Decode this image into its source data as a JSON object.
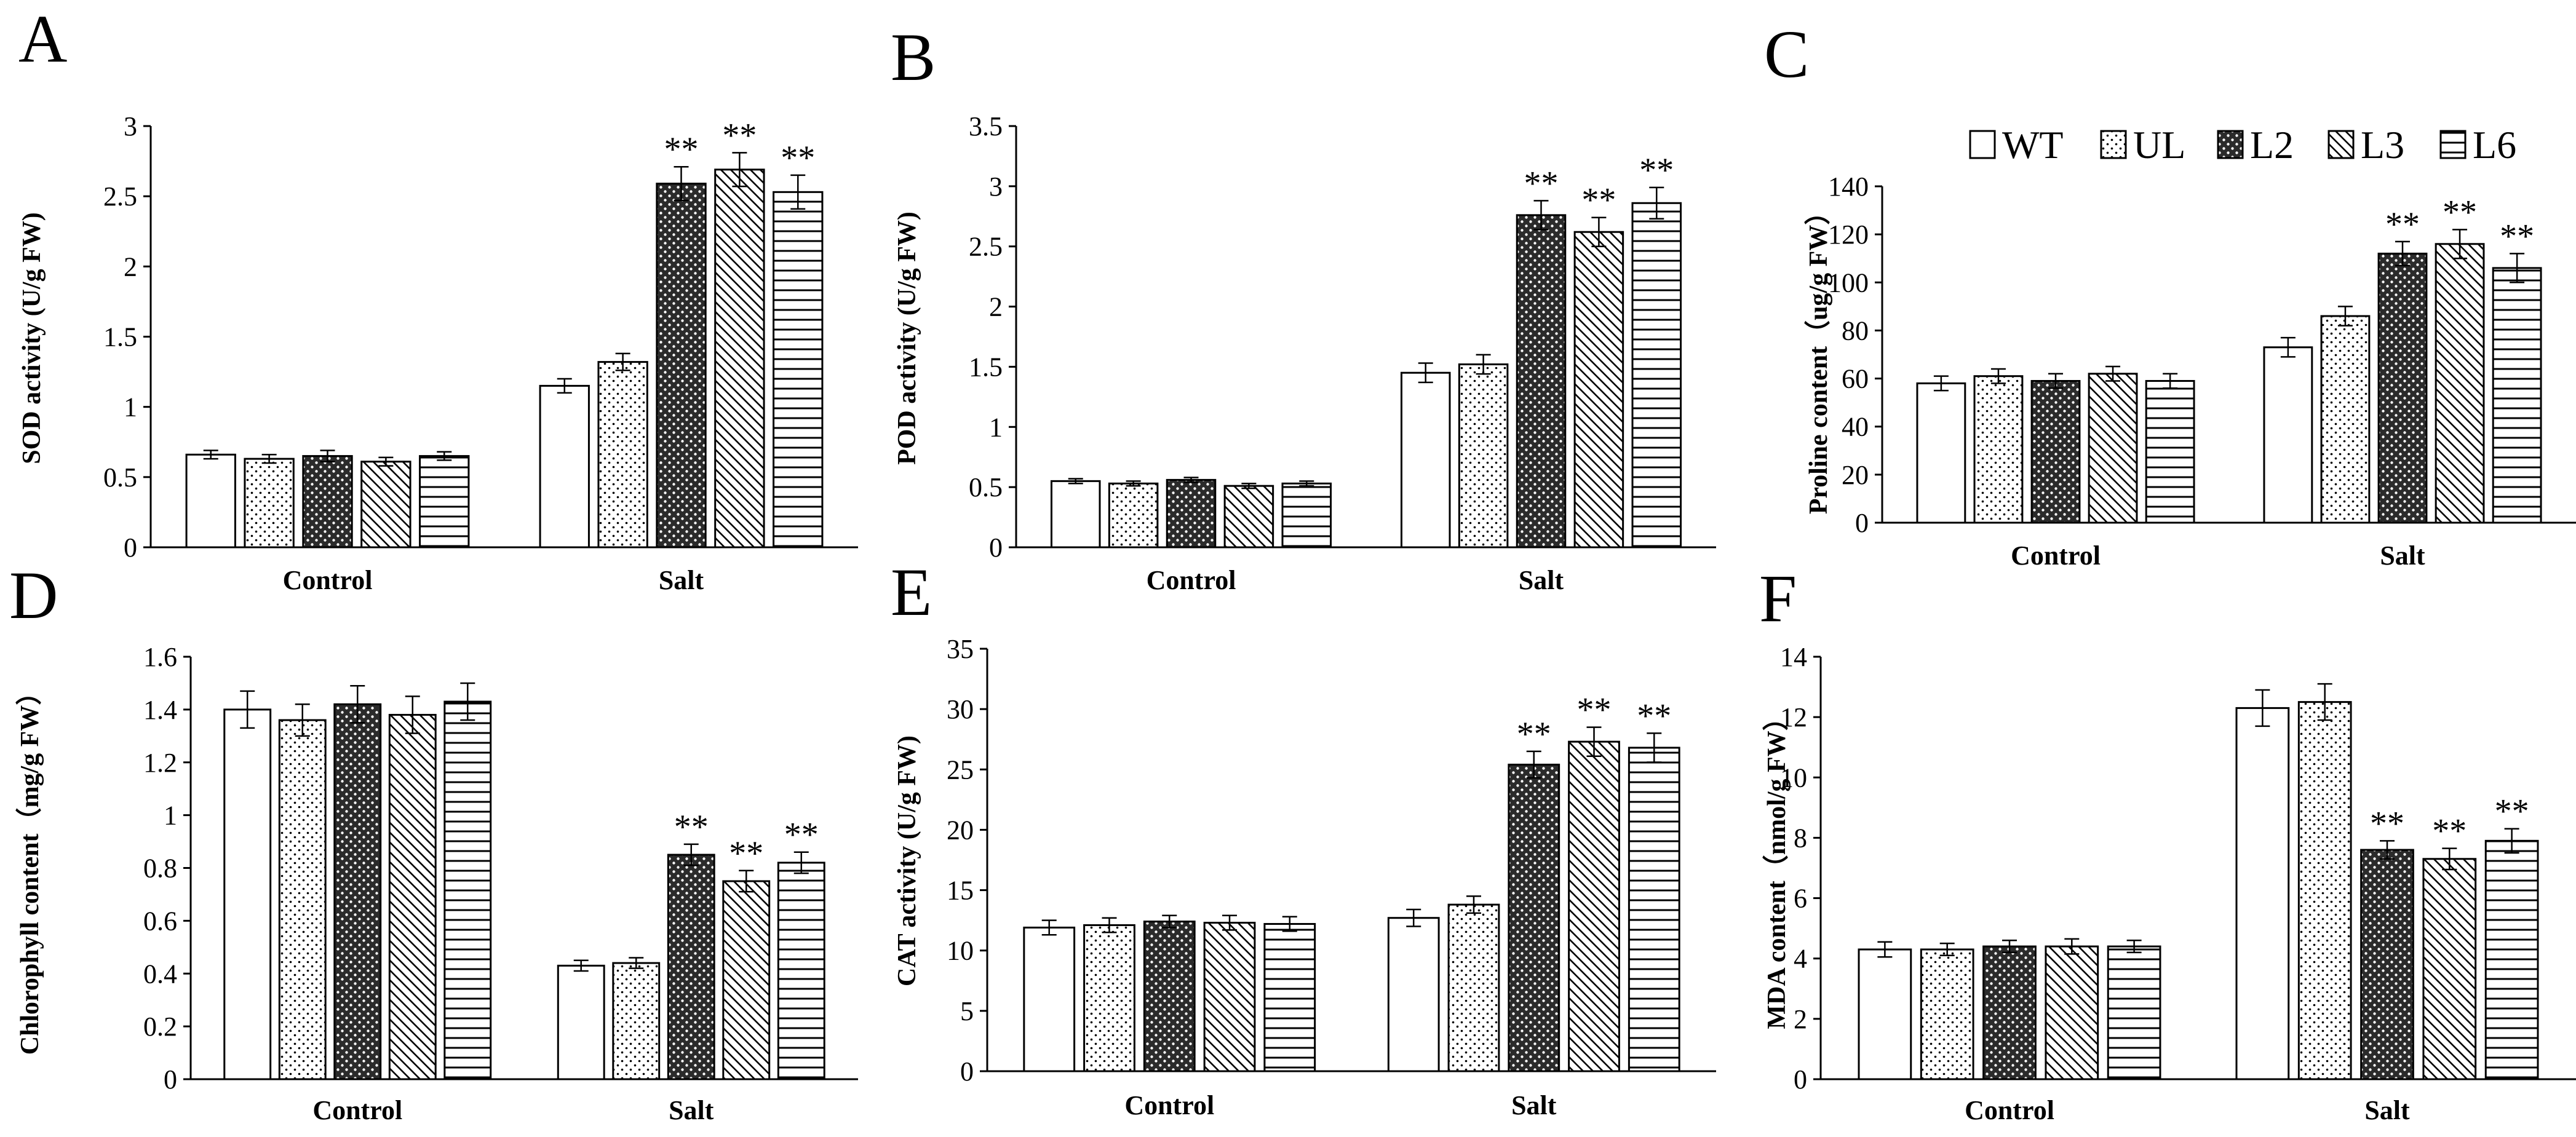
{
  "legend": [
    {
      "key": "WT",
      "label": "WT"
    },
    {
      "key": "UL",
      "label": "UL"
    },
    {
      "key": "L2",
      "label": "L2"
    },
    {
      "key": "L3",
      "label": "L3"
    },
    {
      "key": "L6",
      "label": "L6"
    }
  ],
  "chart_data": [
    {
      "type": "bar",
      "panel": "A",
      "ylabel": "SOD activity (U/g FW)",
      "ylim": [
        0,
        3
      ],
      "yticks": [
        0,
        0.5,
        1,
        1.5,
        2,
        2.5,
        3
      ],
      "yticklabels": [
        "0",
        "0.5",
        "1",
        "1.5",
        "2",
        "2.5",
        "3"
      ],
      "categories": [
        "Control",
        "Salt"
      ],
      "series": [
        {
          "name": "WT",
          "values": [
            0.66,
            1.15
          ],
          "errors": [
            0.03,
            0.05
          ],
          "sig": [
            "",
            ""
          ]
        },
        {
          "name": "UL",
          "values": [
            0.63,
            1.32
          ],
          "errors": [
            0.03,
            0.06
          ],
          "sig": [
            "",
            ""
          ]
        },
        {
          "name": "L2",
          "values": [
            0.65,
            2.59
          ],
          "errors": [
            0.04,
            0.12
          ],
          "sig": [
            "",
            "**"
          ]
        },
        {
          "name": "L3",
          "values": [
            0.61,
            2.69
          ],
          "errors": [
            0.03,
            0.12
          ],
          "sig": [
            "",
            "**"
          ]
        },
        {
          "name": "L6",
          "values": [
            0.65,
            2.53
          ],
          "errors": [
            0.03,
            0.12
          ],
          "sig": [
            "",
            "**"
          ]
        }
      ]
    },
    {
      "type": "bar",
      "panel": "B",
      "ylabel": "POD activity (U/g FW)",
      "ylim": [
        0,
        3.5
      ],
      "yticks": [
        0,
        0.5,
        1,
        1.5,
        2,
        2.5,
        3,
        3.5
      ],
      "yticklabels": [
        "0",
        "0.5",
        "1",
        "1.5",
        "2",
        "2.5",
        "3",
        "3.5"
      ],
      "categories": [
        "Control",
        "Salt"
      ],
      "series": [
        {
          "name": "WT",
          "values": [
            0.55,
            1.45
          ],
          "errors": [
            0.02,
            0.08
          ],
          "sig": [
            "",
            ""
          ]
        },
        {
          "name": "UL",
          "values": [
            0.53,
            1.52
          ],
          "errors": [
            0.02,
            0.08
          ],
          "sig": [
            "",
            ""
          ]
        },
        {
          "name": "L2",
          "values": [
            0.56,
            2.76
          ],
          "errors": [
            0.02,
            0.12
          ],
          "sig": [
            "",
            "**"
          ]
        },
        {
          "name": "L3",
          "values": [
            0.51,
            2.62
          ],
          "errors": [
            0.02,
            0.12
          ],
          "sig": [
            "",
            "**"
          ]
        },
        {
          "name": "L6",
          "values": [
            0.53,
            2.86
          ],
          "errors": [
            0.02,
            0.13
          ],
          "sig": [
            "",
            "**"
          ]
        }
      ]
    },
    {
      "type": "bar",
      "panel": "C",
      "ylabel": "Proline content（ug/g FW）",
      "ylim": [
        0,
        140
      ],
      "yticks": [
        0,
        20,
        40,
        60,
        80,
        100,
        120,
        140
      ],
      "yticklabels": [
        "0",
        "20",
        "40",
        "60",
        "80",
        "100",
        "120",
        "140"
      ],
      "categories": [
        "Control",
        "Salt"
      ],
      "series": [
        {
          "name": "WT",
          "values": [
            58,
            73
          ],
          "errors": [
            3,
            4
          ],
          "sig": [
            "",
            ""
          ]
        },
        {
          "name": "UL",
          "values": [
            61,
            86
          ],
          "errors": [
            3,
            4
          ],
          "sig": [
            "",
            ""
          ]
        },
        {
          "name": "L2",
          "values": [
            59,
            112
          ],
          "errors": [
            3,
            5
          ],
          "sig": [
            "",
            "**"
          ]
        },
        {
          "name": "L3",
          "values": [
            62,
            116
          ],
          "errors": [
            3,
            6
          ],
          "sig": [
            "",
            "**"
          ]
        },
        {
          "name": "L6",
          "values": [
            59,
            106
          ],
          "errors": [
            3,
            6
          ],
          "sig": [
            "",
            "**"
          ]
        }
      ]
    },
    {
      "type": "bar",
      "panel": "D",
      "ylabel": "Chlorophyll content（mg/g FW）",
      "ylim": [
        0,
        1.6
      ],
      "yticks": [
        0,
        0.2,
        0.4,
        0.6,
        0.8,
        1,
        1.2,
        1.4,
        1.6
      ],
      "yticklabels": [
        "0",
        "0.2",
        "0.4",
        "0.6",
        "0.8",
        "1",
        "1.2",
        "1.4",
        "1.6"
      ],
      "categories": [
        "Control",
        "Salt"
      ],
      "series": [
        {
          "name": "WT",
          "values": [
            1.4,
            0.43
          ],
          "errors": [
            0.07,
            0.02
          ],
          "sig": [
            "",
            ""
          ]
        },
        {
          "name": "UL",
          "values": [
            1.36,
            0.44
          ],
          "errors": [
            0.06,
            0.02
          ],
          "sig": [
            "",
            ""
          ]
        },
        {
          "name": "L2",
          "values": [
            1.42,
            0.85
          ],
          "errors": [
            0.07,
            0.04
          ],
          "sig": [
            "",
            "**"
          ]
        },
        {
          "name": "L3",
          "values": [
            1.38,
            0.75
          ],
          "errors": [
            0.07,
            0.04
          ],
          "sig": [
            "",
            "**"
          ]
        },
        {
          "name": "L6",
          "values": [
            1.43,
            0.82
          ],
          "errors": [
            0.07,
            0.04
          ],
          "sig": [
            "",
            "**"
          ]
        }
      ]
    },
    {
      "type": "bar",
      "panel": "E",
      "ylabel": "CAT activity (U/g FW)",
      "ylim": [
        0,
        35
      ],
      "yticks": [
        0,
        5,
        10,
        15,
        20,
        25,
        30,
        35
      ],
      "yticklabels": [
        "0",
        "5",
        "10",
        "15",
        "20",
        "25",
        "30",
        "35"
      ],
      "categories": [
        "Control",
        "Salt"
      ],
      "series": [
        {
          "name": "WT",
          "values": [
            11.9,
            12.7
          ],
          "errors": [
            0.6,
            0.7
          ],
          "sig": [
            "",
            ""
          ]
        },
        {
          "name": "UL",
          "values": [
            12.1,
            13.8
          ],
          "errors": [
            0.6,
            0.7
          ],
          "sig": [
            "",
            ""
          ]
        },
        {
          "name": "L2",
          "values": [
            12.4,
            25.4
          ],
          "errors": [
            0.5,
            1.1
          ],
          "sig": [
            "",
            "**"
          ]
        },
        {
          "name": "L3",
          "values": [
            12.3,
            27.3
          ],
          "errors": [
            0.6,
            1.2
          ],
          "sig": [
            "",
            "**"
          ]
        },
        {
          "name": "L6",
          "values": [
            12.2,
            26.8
          ],
          "errors": [
            0.6,
            1.2
          ],
          "sig": [
            "",
            "**"
          ]
        }
      ]
    },
    {
      "type": "bar",
      "panel": "F",
      "ylabel": "MDA content（nmol/g FW）",
      "ylim": [
        0,
        14
      ],
      "yticks": [
        0,
        2,
        4,
        6,
        8,
        10,
        12,
        14
      ],
      "yticklabels": [
        "0",
        "2",
        "4",
        "6",
        "8",
        "10",
        "12",
        "14"
      ],
      "categories": [
        "Control",
        "Salt"
      ],
      "series": [
        {
          "name": "WT",
          "values": [
            4.3,
            12.3
          ],
          "errors": [
            0.25,
            0.6
          ],
          "sig": [
            "",
            ""
          ]
        },
        {
          "name": "UL",
          "values": [
            4.3,
            12.5
          ],
          "errors": [
            0.2,
            0.6
          ],
          "sig": [
            "",
            ""
          ]
        },
        {
          "name": "L2",
          "values": [
            4.4,
            7.6
          ],
          "errors": [
            0.2,
            0.3
          ],
          "sig": [
            "",
            "**"
          ]
        },
        {
          "name": "L3",
          "values": [
            4.4,
            7.3
          ],
          "errors": [
            0.25,
            0.35
          ],
          "sig": [
            "",
            "**"
          ]
        },
        {
          "name": "L6",
          "values": [
            4.4,
            7.9
          ],
          "errors": [
            0.2,
            0.4
          ],
          "sig": [
            "",
            "**"
          ]
        }
      ]
    }
  ]
}
